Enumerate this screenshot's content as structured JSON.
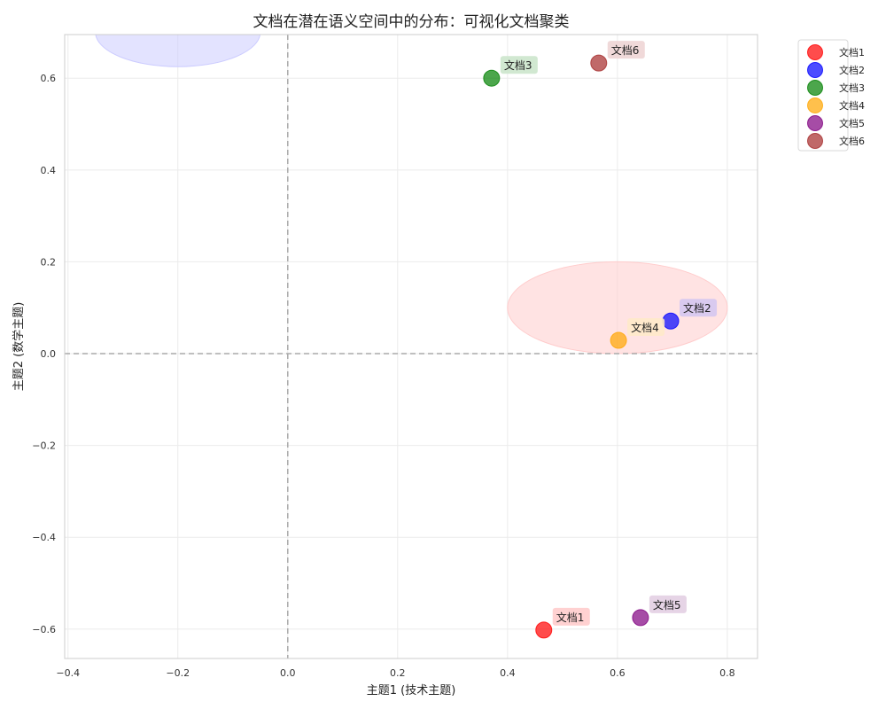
{
  "chart_data": {
    "type": "scatter",
    "title": "文档在潜在语义空间中的分布：可视化文档聚类",
    "xlabel": "主题1 (技术主题)",
    "ylabel": "主题2 (数学主题)",
    "xlim": [
      -0.406,
      0.855
    ],
    "ylim": [
      -0.664,
      0.695
    ],
    "xticks": [
      -0.4,
      -0.2,
      0.0,
      0.2,
      0.4,
      0.6,
      0.8
    ],
    "xtick_labels": [
      "-0.4",
      "-0.2",
      "0.0",
      "0.2",
      "0.4",
      "0.6",
      "0.8"
    ],
    "yticks": [
      -0.6,
      -0.4,
      -0.2,
      0.0,
      0.2,
      0.4,
      0.6
    ],
    "ytick_labels": [
      "-0.6",
      "-0.4",
      "-0.2",
      "0.0",
      "0.2",
      "0.4",
      "0.6"
    ],
    "grid": true,
    "legend_position": "outside upper right",
    "reference_lines": [
      {
        "orientation": "horizontal",
        "value": 0.0,
        "style": "dashed",
        "color": "#aaaaaa"
      },
      {
        "orientation": "vertical",
        "value": 0.0,
        "style": "dashed",
        "color": "#aaaaaa"
      }
    ],
    "series": [
      {
        "name": "文档1",
        "x": 0.466,
        "y": -0.602,
        "color": "#ff0000",
        "label_bg": "#ffcccc"
      },
      {
        "name": "文档2",
        "x": 0.697,
        "y": 0.071,
        "color": "#0000ff",
        "label_bg": "#d5c6f0"
      },
      {
        "name": "文档3",
        "x": 0.371,
        "y": 0.6,
        "color": "#008000",
        "label_bg": "#cce5cc"
      },
      {
        "name": "文档4",
        "x": 0.602,
        "y": 0.029,
        "color": "#ffa500",
        "label_bg": "#ffe9c9"
      },
      {
        "name": "文档5",
        "x": 0.642,
        "y": -0.575,
        "color": "#800080",
        "label_bg": "#e3cfe3"
      },
      {
        "name": "文档6",
        "x": 0.566,
        "y": 0.633,
        "color": "#a52a2a",
        "label_bg": "#eed5d5"
      }
    ],
    "ellipses": [
      {
        "cx": 0.6,
        "cy": 0.1,
        "width": 0.4,
        "height": 0.2,
        "color": "#ffcccc"
      },
      {
        "cx": -0.2,
        "cy": 0.7,
        "width": 0.3,
        "height": 0.15,
        "color": "#ccccff"
      }
    ]
  }
}
